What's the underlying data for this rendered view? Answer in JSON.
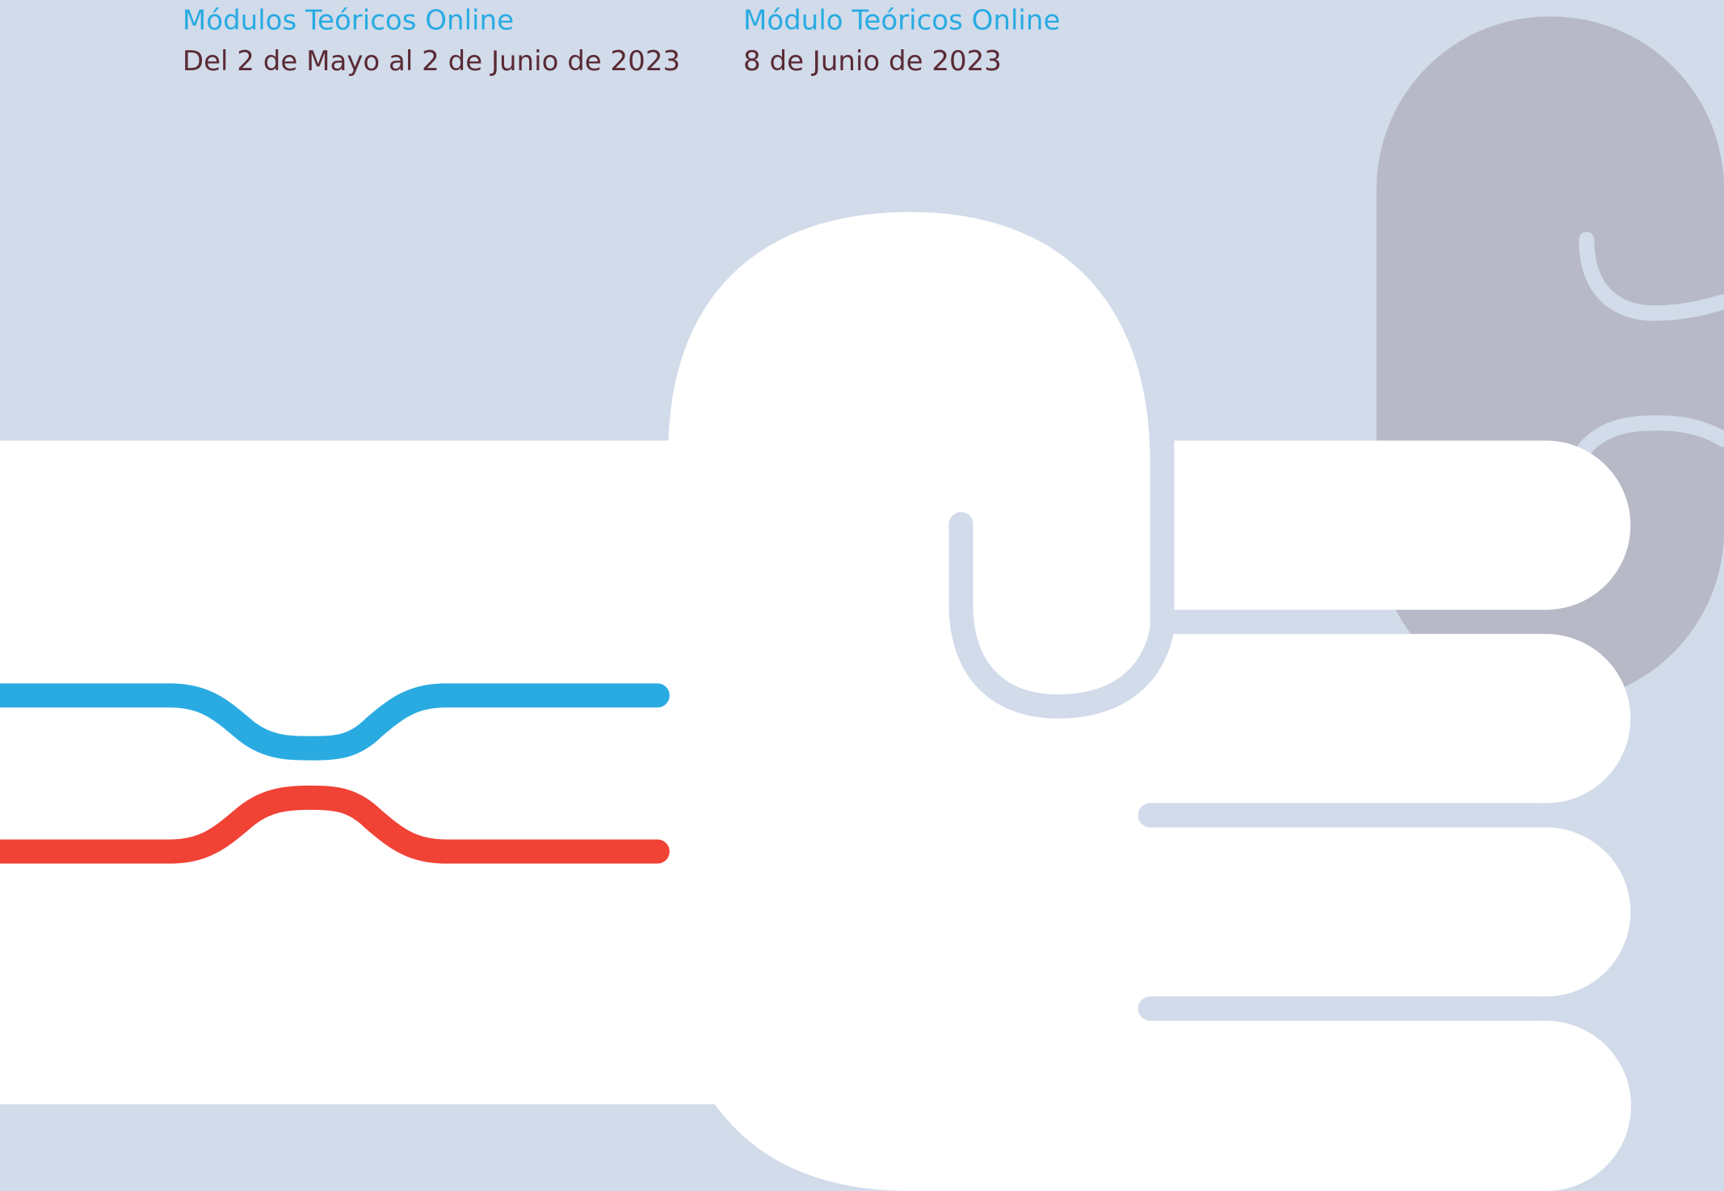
{
  "events": [
    {
      "title": "Módulos Teóricos Online",
      "date": "Del 2 de Mayo al 2 de Junio de 2023"
    },
    {
      "title": "Módulo Teóricos Online",
      "date": "8 de Junio de 2023"
    }
  ]
}
